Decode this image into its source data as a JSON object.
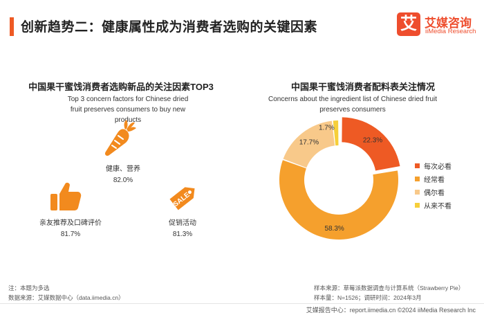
{
  "header": {
    "title": "创新趋势二：健康属性成为消费者选购的关键因素",
    "logo_mark": "艾",
    "logo_cn": "艾媒咨询",
    "logo_en": "iiMedia Research"
  },
  "left_panel": {
    "title": "中国果干蜜饯消费者选购新品的关注因素TOP3",
    "subtitle": "Top 3 concern factors for Chinese dried fruit preserves consumers to buy new products",
    "factors": [
      {
        "label": "健康、营养",
        "value": "82.0%",
        "icon": "carrot-icon"
      },
      {
        "label": "亲友推荐及口碑评价",
        "value": "81.7%",
        "icon": "thumbs-up-icon"
      },
      {
        "label": "促销活动",
        "value": "81.3%",
        "icon": "sale-tag-icon"
      }
    ],
    "sale_tag_text": "SALE"
  },
  "right_panel": {
    "title": "中国果干蜜饯消费者配料表关注情况",
    "subtitle": "Concerns about the ingredient list of Chinese dried fruit preserves consumers"
  },
  "chart_data": [
    {
      "type": "bar",
      "categories": [
        "健康、营养",
        "亲友推荐及口碑评价",
        "促销活动"
      ],
      "values": [
        82.0,
        81.7,
        81.3
      ],
      "title": "中国果干蜜饯消费者选购新品的关注因素TOP3",
      "subtitle": "Top 3 concern factors for Chinese dried fruit preserves consumers to buy new products"
    },
    {
      "type": "pie",
      "title": "中国果干蜜饯消费者配料表关注情况",
      "subtitle": "Concerns about the ingredient list of Chinese dried fruit preserves consumers",
      "categories": [
        "每次必看",
        "经常看",
        "偶尔看",
        "从来不看"
      ],
      "values": [
        22.3,
        58.3,
        17.7,
        1.7
      ],
      "labels": [
        "22.3%",
        "58.3%",
        "17.7%",
        "1.7%"
      ],
      "colors": [
        "#ee5a24",
        "#f5a02d",
        "#f8c98a",
        "#f6cf3a"
      ],
      "legend": "right"
    }
  ],
  "footnotes": {
    "note": "注：本题为多选",
    "source": "数据来源：艾媒数据中心（data.iimedia.cn）",
    "sample_source": "样本来源：草莓派数据调查与计算系统（Strawberry Pie）",
    "sample_size": "样本量：N=1526；调研时间：2024年3月"
  },
  "footer": {
    "text": "艾媒报告中心：report.iimedia.cn    ©2024  iiMedia Research Inc"
  },
  "colors": {
    "accent": "#ee5a24",
    "icon_orange": "#f28a1e"
  }
}
